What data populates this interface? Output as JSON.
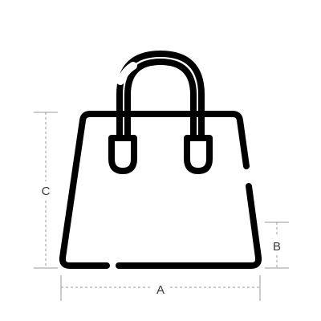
{
  "diagram": {
    "icon": "handbag-icon",
    "line_color": "#000000",
    "dimension_color": "#9a9a9a",
    "label_color": "#3a3a3a",
    "dimensions": {
      "width": {
        "label": "A"
      },
      "bottom_depth": {
        "label": "B"
      },
      "height": {
        "label": "C"
      }
    }
  }
}
